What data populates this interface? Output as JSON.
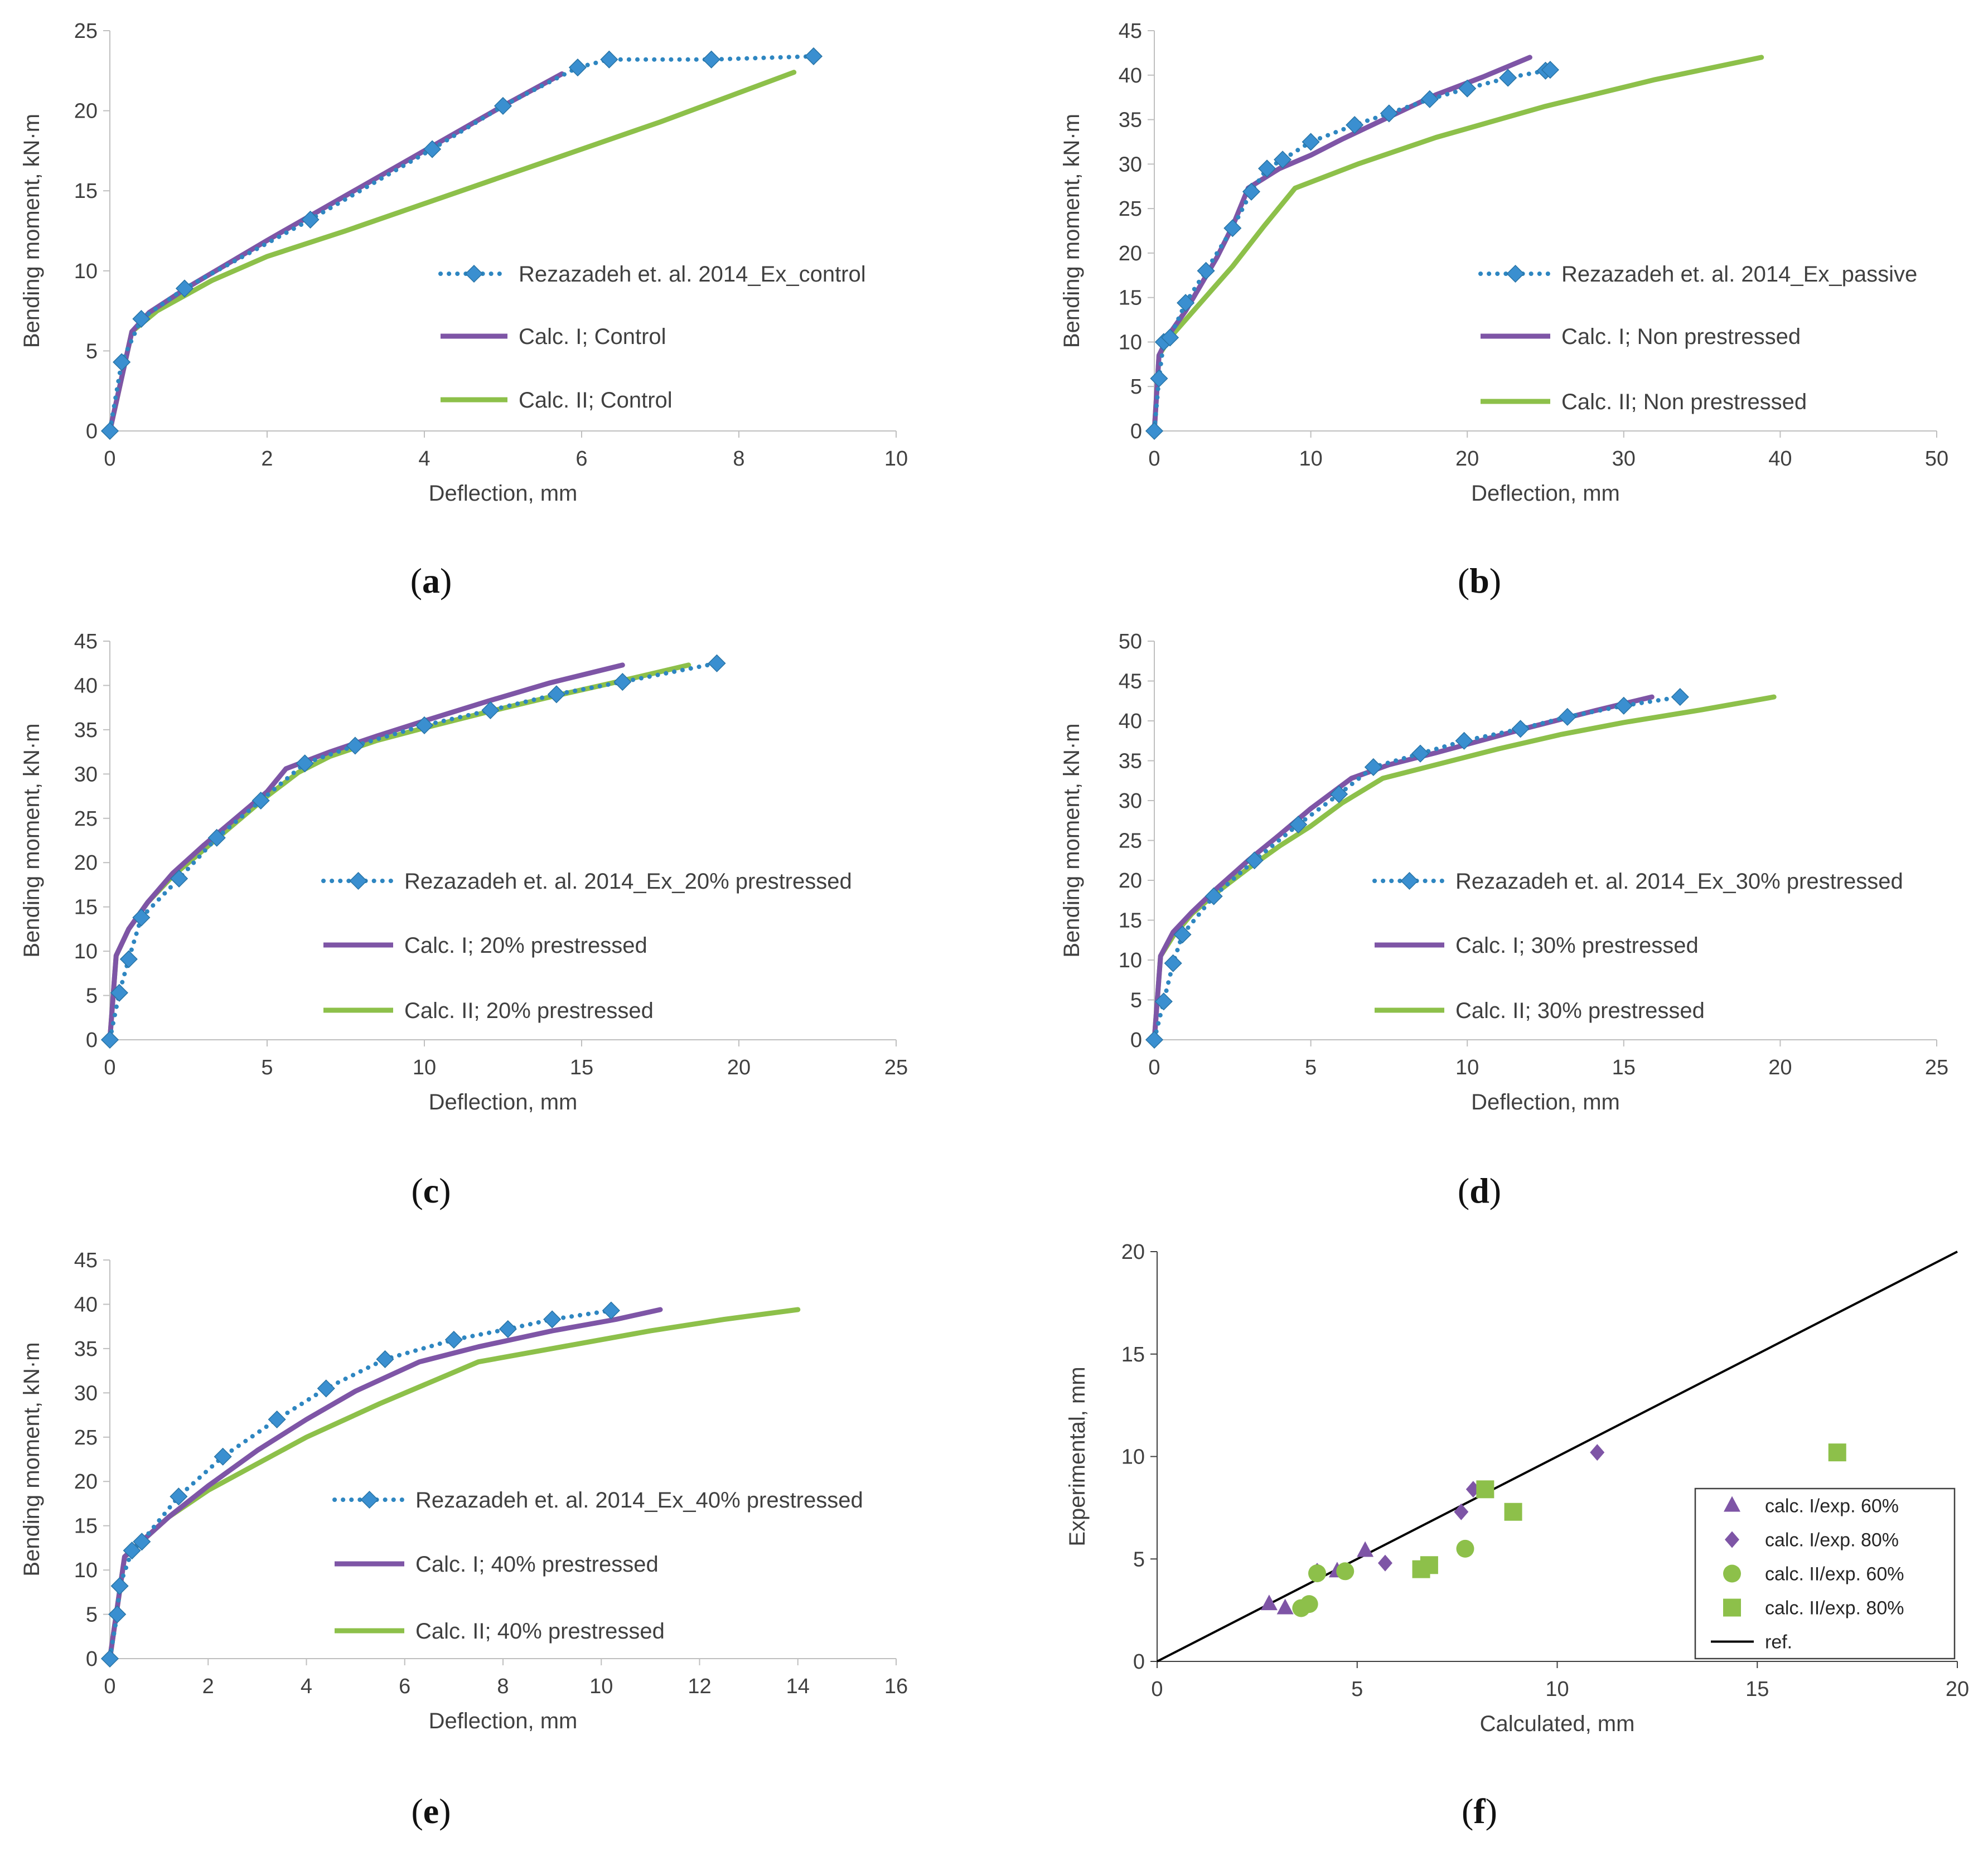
{
  "figure": {
    "colors": {
      "experimental": "#2E86C1",
      "experimental_marker": "#3A8FD0",
      "calc1": "#7E55A6",
      "calc2": "#8DC04A",
      "ref": "#000000",
      "axis": "#BFBFBF",
      "text": "#404040"
    }
  },
  "chart_data": [
    {
      "type": "line",
      "label": "(a)",
      "label_letter": "a",
      "xlabel": "Deflection, mm",
      "ylabel": "Bending moment, kN·m",
      "xlim": [
        0,
        10
      ],
      "ylim": [
        0,
        25
      ],
      "xticks": [
        "0",
        "2",
        "4",
        "6",
        "8",
        "10"
      ],
      "yticks": [
        "0",
        "5",
        "10",
        "15",
        "20",
        "25"
      ],
      "legend_position": "right",
      "series": [
        {
          "name": "Rezazadeh et. al. 2014_Ex_control",
          "kind": "exp",
          "x": [
            0,
            0.15,
            0.4,
            0.95,
            2.55,
            4.1,
            5.0,
            5.95,
            6.35,
            7.65,
            8.95
          ],
          "y": [
            0,
            4.3,
            7.0,
            8.9,
            13.2,
            17.6,
            20.3,
            22.7,
            23.2,
            23.2,
            23.4
          ]
        },
        {
          "name": "Calc. I; Control",
          "kind": "calc1",
          "x": [
            0,
            0.28,
            0.5,
            1.0,
            2.0,
            3.0,
            4.0,
            5.0,
            5.75
          ],
          "y": [
            0,
            6.2,
            7.4,
            9.0,
            11.9,
            14.7,
            17.5,
            20.3,
            22.3
          ]
        },
        {
          "name": "Calc. II; Control",
          "kind": "calc2",
          "x": [
            0,
            0.28,
            0.6,
            1.3,
            2.0,
            3.0,
            5.0,
            7.0,
            8.7
          ],
          "y": [
            0,
            6.2,
            7.5,
            9.4,
            10.9,
            12.5,
            15.9,
            19.3,
            22.4
          ]
        }
      ]
    },
    {
      "type": "line",
      "label": "(b)",
      "label_letter": "b",
      "xlabel": "Deflection, mm",
      "ylabel": "Bending moment, kN·m",
      "xlim": [
        0,
        50
      ],
      "ylim": [
        0,
        45
      ],
      "xticks": [
        "0",
        "10",
        "20",
        "30",
        "40",
        "50"
      ],
      "yticks": [
        "0",
        "5",
        "10",
        "15",
        "20",
        "25",
        "30",
        "35",
        "40",
        "45"
      ],
      "legend_position": "right",
      "series": [
        {
          "name": "Rezazadeh et. al. 2014_Ex_passive",
          "kind": "exp",
          "x": [
            0,
            0.3,
            0.6,
            1.0,
            2.0,
            3.3,
            5.0,
            6.2,
            7.2,
            8.2,
            10.0,
            12.8,
            15.0,
            17.6,
            20.0,
            22.6,
            25.0,
            25.3
          ],
          "y": [
            0,
            5.9,
            10.0,
            10.5,
            14.4,
            18.0,
            22.8,
            26.9,
            29.5,
            30.5,
            32.5,
            34.4,
            35.7,
            37.3,
            38.5,
            39.7,
            40.5,
            40.6
          ]
        },
        {
          "name": "Calc. I; Non prestressed",
          "kind": "calc1",
          "x": [
            0,
            0.3,
            1.0,
            2.0,
            3.0,
            4.0,
            5.0,
            6.0,
            8.0,
            10.0,
            12.0,
            15.0,
            18.0,
            21.0,
            24.0
          ],
          "y": [
            0,
            8.5,
            11.0,
            13.5,
            16.5,
            19.5,
            23.0,
            27.3,
            29.5,
            31.0,
            32.8,
            35.3,
            37.8,
            39.8,
            42.0
          ]
        },
        {
          "name": "Calc. II; Non prestressed",
          "kind": "calc2",
          "x": [
            0,
            0.3,
            1.0,
            2.0,
            3.0,
            5.0,
            7.0,
            9.0,
            13.0,
            18.0,
            25.0,
            32.0,
            38.8
          ],
          "y": [
            0,
            8.5,
            10.5,
            12.5,
            14.5,
            18.5,
            23.0,
            27.3,
            30.0,
            33.0,
            36.5,
            39.5,
            42.0
          ]
        }
      ]
    },
    {
      "type": "line",
      "label": "(c)",
      "label_letter": "c",
      "xlabel": "Deflection, mm",
      "ylabel": "Bending moment, kN·m",
      "xlim": [
        0,
        25
      ],
      "ylim": [
        0,
        45
      ],
      "xticks": [
        "0",
        "5",
        "10",
        "15",
        "20",
        "25"
      ],
      "yticks": [
        "0",
        "5",
        "10",
        "15",
        "20",
        "25",
        "30",
        "35",
        "40",
        "45"
      ],
      "legend_position": "right",
      "series": [
        {
          "name": "Rezazadeh et. al. 2014_Ex_20% prestressed",
          "kind": "exp",
          "x": [
            0,
            0.3,
            0.6,
            1.0,
            2.2,
            3.4,
            4.8,
            6.2,
            7.8,
            10.0,
            12.1,
            14.2,
            16.3,
            19.3
          ],
          "y": [
            0,
            5.3,
            9.1,
            13.8,
            18.2,
            22.8,
            27.0,
            31.2,
            33.2,
            35.5,
            37.2,
            39.0,
            40.4,
            42.5
          ]
        },
        {
          "name": "Calc. I; 20% prestressed",
          "kind": "calc1",
          "x": [
            0,
            0.2,
            0.6,
            1.2,
            2.0,
            3.0,
            4.0,
            5.0,
            5.6,
            7.0,
            8.5,
            10.0,
            12.0,
            14.0,
            16.3
          ],
          "y": [
            0,
            9.5,
            12.5,
            15.5,
            18.8,
            22.0,
            25.0,
            28.0,
            30.6,
            32.5,
            34.3,
            36.0,
            38.2,
            40.3,
            42.3
          ]
        },
        {
          "name": "Calc. II; 20% prestressed",
          "kind": "calc2",
          "x": [
            0,
            0.2,
            0.6,
            1.2,
            2.0,
            3.0,
            4.0,
            5.0,
            6.0,
            7.0,
            8.5,
            10.0,
            12.0,
            14.0,
            16.0,
            18.4
          ],
          "y": [
            0,
            9.5,
            12.5,
            15.5,
            18.5,
            21.5,
            24.5,
            27.5,
            30.2,
            32.0,
            33.8,
            35.2,
            37.0,
            38.7,
            40.3,
            42.3
          ]
        }
      ]
    },
    {
      "type": "line",
      "label": "(d)",
      "label_letter": "d",
      "xlabel": "Deflection, mm",
      "ylabel": "Bending moment, kN·m",
      "xlim": [
        0,
        25
      ],
      "ylim": [
        0,
        50
      ],
      "xticks": [
        "0",
        "5",
        "10",
        "15",
        "20",
        "25"
      ],
      "yticks": [
        "0",
        "5",
        "10",
        "15",
        "20",
        "25",
        "30",
        "35",
        "40",
        "45",
        "50"
      ],
      "legend_position": "right",
      "series": [
        {
          "name": "Rezazadeh et. al. 2014_Ex_30% prestressed",
          "kind": "exp",
          "x": [
            0,
            0.3,
            0.6,
            0.9,
            1.9,
            3.2,
            4.6,
            5.9,
            7.0,
            8.5,
            9.9,
            11.7,
            13.2,
            15.0,
            16.8
          ],
          "y": [
            0,
            4.8,
            9.6,
            13.2,
            18.0,
            22.5,
            27.0,
            30.8,
            34.2,
            35.9,
            37.5,
            39.0,
            40.5,
            41.9,
            43.0
          ]
        },
        {
          "name": "Calc. I; 30% prestressed",
          "kind": "calc1",
          "x": [
            0,
            0.2,
            0.6,
            1.2,
            2.0,
            3.0,
            4.0,
            5.0,
            6.3,
            7.5,
            9.0,
            10.5,
            12.0,
            14.0,
            15.9
          ],
          "y": [
            0,
            10.5,
            13.5,
            16.0,
            19.0,
            22.5,
            25.7,
            29.0,
            32.8,
            34.5,
            36.0,
            37.6,
            39.2,
            41.2,
            43.0
          ]
        },
        {
          "name": "Calc. II; 30% prestressed",
          "kind": "calc2",
          "x": [
            0,
            0.2,
            0.6,
            1.2,
            2.0,
            3.0,
            4.0,
            5.0,
            6.0,
            7.3,
            9.0,
            11.0,
            13.0,
            15.0,
            17.5,
            19.8
          ],
          "y": [
            0,
            10.5,
            13.0,
            15.8,
            18.5,
            21.5,
            24.3,
            26.8,
            29.7,
            32.8,
            34.5,
            36.5,
            38.3,
            39.8,
            41.4,
            43.0
          ]
        }
      ]
    },
    {
      "type": "line",
      "label": "(e)",
      "label_letter": "e",
      "xlabel": "Deflection, mm",
      "ylabel": "Bending moment, kN·m",
      "xlim": [
        0,
        16
      ],
      "ylim": [
        0,
        45
      ],
      "xticks": [
        "0",
        "2",
        "4",
        "6",
        "8",
        "10",
        "12",
        "14",
        "16"
      ],
      "yticks": [
        "0",
        "5",
        "10",
        "15",
        "20",
        "25",
        "30",
        "35",
        "40",
        "45"
      ],
      "legend_position": "right",
      "series": [
        {
          "name": "Rezazadeh et. al. 2014_Ex_40% prestressed",
          "kind": "exp",
          "x": [
            0,
            0.15,
            0.2,
            0.45,
            0.65,
            1.4,
            2.3,
            3.4,
            4.4,
            5.6,
            7.0,
            8.1,
            9.0,
            10.2
          ],
          "y": [
            0,
            5.0,
            8.2,
            12.2,
            13.2,
            18.3,
            22.8,
            27.0,
            30.5,
            33.8,
            36.0,
            37.2,
            38.3,
            39.3
          ]
        },
        {
          "name": "Calc. I; 40% prestressed",
          "kind": "calc1",
          "x": [
            0,
            0.3,
            0.7,
            1.2,
            2.0,
            3.0,
            4.0,
            5.0,
            6.3,
            7.5,
            9.0,
            10.3,
            11.2
          ],
          "y": [
            0,
            11.5,
            13.5,
            16.0,
            19.5,
            23.5,
            27.0,
            30.2,
            33.5,
            35.2,
            37.0,
            38.3,
            39.4
          ]
        },
        {
          "name": "Calc. II; 40% prestressed",
          "kind": "calc2",
          "x": [
            0,
            0.3,
            0.7,
            1.2,
            2.0,
            3.0,
            4.0,
            5.5,
            7.5,
            9.5,
            11.0,
            12.5,
            14.0
          ],
          "y": [
            0,
            11.5,
            13.5,
            16.0,
            19.0,
            22.0,
            25.0,
            28.8,
            33.5,
            35.5,
            37.0,
            38.3,
            39.4
          ]
        }
      ]
    },
    {
      "type": "scatter",
      "label": "(f)",
      "label_letter": "f",
      "xlabel": "Calculated, mm",
      "ylabel": "Experimental, mm",
      "xlim": [
        0,
        20
      ],
      "ylim": [
        0,
        20
      ],
      "xticks": [
        "0",
        "5",
        "10",
        "15",
        "20"
      ],
      "yticks": [
        "0",
        "5",
        "10",
        "15",
        "20"
      ],
      "legend_position": "bottom-right",
      "series": [
        {
          "name": "calc. I/exp. 60%",
          "kind": "triangle",
          "x": [
            2.8,
            3.2,
            4.5,
            5.2
          ],
          "y": [
            2.8,
            2.6,
            4.4,
            5.4
          ]
        },
        {
          "name": "calc. I/exp. 80%",
          "kind": "diamond",
          "x": [
            4.0,
            5.7,
            7.6,
            7.9,
            11.0
          ],
          "y": [
            4.4,
            4.8,
            7.3,
            8.4,
            10.2
          ]
        },
        {
          "name": "calc. II/exp. 60%",
          "kind": "circle",
          "x": [
            3.6,
            3.8,
            4.0,
            4.7,
            7.7
          ],
          "y": [
            2.6,
            2.8,
            4.3,
            4.4,
            5.5
          ]
        },
        {
          "name": "calc. II/exp. 80%",
          "kind": "square",
          "x": [
            6.6,
            6.8,
            8.2,
            8.9,
            17.0
          ],
          "y": [
            4.5,
            4.7,
            8.4,
            7.3,
            10.2
          ]
        },
        {
          "name": "ref.",
          "kind": "ref",
          "x": [
            0,
            20
          ],
          "y": [
            0,
            20
          ]
        }
      ]
    }
  ]
}
